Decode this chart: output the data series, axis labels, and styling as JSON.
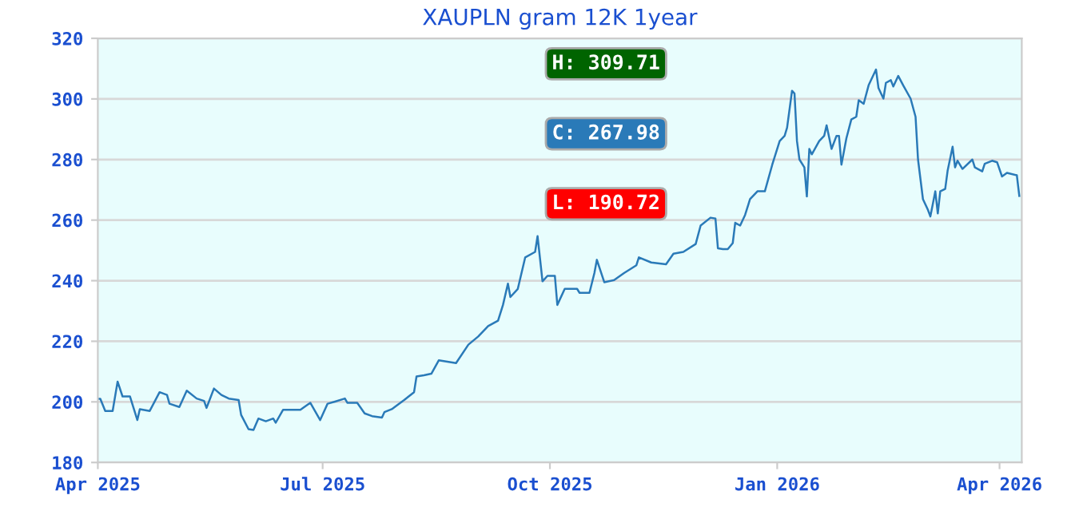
{
  "chart_data": {
    "type": "line",
    "title": "XAUPLN gram 12K 1year",
    "x": [
      "2025-04-01",
      "2025-04-02",
      "2025-04-04",
      "2025-04-07",
      "2025-04-09",
      "2025-04-11",
      "2025-04-14",
      "2025-04-17",
      "2025-04-18",
      "2025-04-22",
      "2025-04-26",
      "2025-04-29",
      "2025-04-30",
      "2025-05-04",
      "2025-05-07",
      "2025-05-11",
      "2025-05-14",
      "2025-05-15",
      "2025-05-18",
      "2025-05-21",
      "2025-05-24",
      "2025-05-28",
      "2025-05-29",
      "2025-06-01",
      "2025-06-03",
      "2025-06-05",
      "2025-06-08",
      "2025-06-11",
      "2025-06-12",
      "2025-06-15",
      "2025-06-22",
      "2025-06-26",
      "2025-06-30",
      "2025-07-03",
      "2025-07-06",
      "2025-07-10",
      "2025-07-11",
      "2025-07-15",
      "2025-07-18",
      "2025-07-21",
      "2025-07-25",
      "2025-07-26",
      "2025-07-29",
      "2025-08-03",
      "2025-08-07",
      "2025-08-08",
      "2025-08-11",
      "2025-08-14",
      "2025-08-17",
      "2025-08-24",
      "2025-08-29",
      "2025-09-02",
      "2025-09-06",
      "2025-09-10",
      "2025-09-12",
      "2025-09-14",
      "2025-09-15",
      "2025-09-18",
      "2025-09-21",
      "2025-09-25",
      "2025-09-26",
      "2025-09-28",
      "2025-09-30",
      "2025-10-03",
      "2025-10-04",
      "2025-10-07",
      "2025-10-12",
      "2025-10-13",
      "2025-10-17",
      "2025-10-19",
      "2025-10-20",
      "2025-10-23",
      "2025-10-27",
      "2025-10-31",
      "2025-11-05",
      "2025-11-06",
      "2025-11-11",
      "2025-11-17",
      "2025-11-20",
      "2025-11-24",
      "2025-11-29",
      "2025-12-01",
      "2025-12-05",
      "2025-12-07",
      "2025-12-08",
      "2025-12-10",
      "2025-12-12",
      "2025-12-14",
      "2025-12-15",
      "2025-12-17",
      "2025-12-19",
      "2025-12-21",
      "2025-12-24",
      "2025-12-27",
      "2025-12-30",
      "2026-01-02",
      "2026-01-04",
      "2026-01-05",
      "2026-01-07",
      "2026-01-08",
      "2026-01-09",
      "2026-01-10",
      "2026-01-12",
      "2026-01-13",
      "2026-01-14",
      "2026-01-15",
      "2026-01-18",
      "2026-01-20",
      "2026-01-21",
      "2026-01-23",
      "2026-01-25",
      "2026-01-26",
      "2026-01-27",
      "2026-01-29",
      "2026-01-31",
      "2026-02-02",
      "2026-02-03",
      "2026-02-05",
      "2026-02-07",
      "2026-02-10",
      "2026-02-11",
      "2026-02-13",
      "2026-02-14",
      "2026-02-16",
      "2026-02-17",
      "2026-02-19",
      "2026-02-21",
      "2026-02-24",
      "2026-02-26",
      "2026-02-27",
      "2026-03-01",
      "2026-03-03",
      "2026-03-04",
      "2026-03-06",
      "2026-03-07",
      "2026-03-08",
      "2026-03-10",
      "2026-03-11",
      "2026-03-13",
      "2026-03-14",
      "2026-03-15",
      "2026-03-17",
      "2026-03-21",
      "2026-03-22",
      "2026-03-25",
      "2026-03-26",
      "2026-03-29",
      "2026-03-31",
      "2026-04-02",
      "2026-04-04",
      "2026-04-08",
      "2026-04-09"
    ],
    "series": [
      {
        "color": "#2a7ab8",
        "values": [
          201,
          201,
          197,
          197,
          206.7,
          201.8,
          201.8,
          194,
          197.6,
          197,
          203.2,
          202.3,
          199.4,
          198.3,
          203.7,
          201.1,
          200.3,
          198,
          204.4,
          202.3,
          201.1,
          200.6,
          195.7,
          191,
          190.7,
          194.5,
          193.6,
          194.5,
          193.1,
          197.4,
          197.4,
          199.7,
          194,
          199.4,
          200.1,
          201.1,
          199.7,
          199.7,
          196.2,
          195.3,
          194.8,
          196.6,
          197.6,
          200.6,
          203.2,
          208.4,
          208.8,
          209.3,
          213.7,
          212.8,
          218.9,
          221.6,
          225,
          226.8,
          232,
          239,
          234.6,
          237.3,
          247.7,
          249.5,
          254.7,
          239.8,
          241.6,
          241.6,
          232,
          237.3,
          237.3,
          236,
          236,
          242.5,
          246.9,
          239.5,
          240.2,
          242.5,
          245.1,
          247.7,
          246,
          245.4,
          248.9,
          249.5,
          252.1,
          258.2,
          260.8,
          260.5,
          250.7,
          250.4,
          250.4,
          252.4,
          259.1,
          258.2,
          261.7,
          266.9,
          269.5,
          269.5,
          278.3,
          286.1,
          287.8,
          290.5,
          302.7,
          301.8,
          286.1,
          280,
          277.4,
          267.8,
          283.5,
          281.7,
          286.1,
          287.8,
          291.3,
          283.5,
          287.8,
          287.8,
          278.3,
          287,
          293.2,
          294.1,
          299.6,
          298.4,
          304.5,
          309.7,
          303.6,
          300.1,
          305.3,
          306.2,
          304.1,
          307.6,
          304.5,
          300.1,
          294.1,
          280,
          266.9,
          263.4,
          261.2,
          269.5,
          262.2,
          269.5,
          270.3,
          276.4,
          284.2,
          277.4,
          279.6,
          276.9,
          280,
          277.4,
          276.1,
          278.6,
          279.6,
          279.1,
          274.4,
          275.6,
          274.8,
          268.0
        ]
      }
    ],
    "xlim": [
      "2025-04-01",
      "2026-04-10"
    ],
    "xticks": [
      {
        "value": "2025-04-01",
        "label": "Apr 2025"
      },
      {
        "value": "2025-07-01",
        "label": "Jul 2025"
      },
      {
        "value": "2025-10-01",
        "label": "Oct 2025"
      },
      {
        "value": "2026-01-01",
        "label": "Jan 2026"
      },
      {
        "value": "2026-04-01",
        "label": "Apr 2026"
      }
    ],
    "ylim": [
      180,
      320
    ],
    "yticks": [
      180,
      200,
      220,
      240,
      260,
      280,
      300,
      320
    ],
    "grid": "y",
    "legend": false,
    "marker": "none",
    "line_style": "solid",
    "annotations": [
      "H: 309.71",
      "C: 267.98",
      "L: 190.72"
    ]
  }
}
